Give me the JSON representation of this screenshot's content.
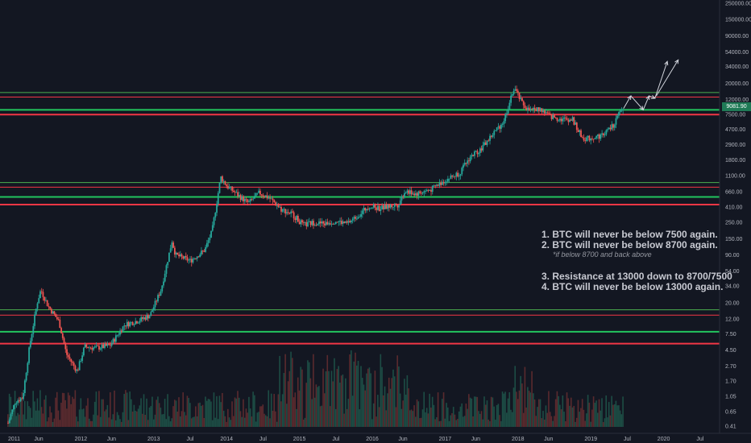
{
  "chart_data": {
    "type": "candlestick",
    "y_scale": "log",
    "y_ticks": [
      "250000.00",
      "150000.00",
      "90000.00",
      "54000.00",
      "34000.00",
      "20000.00",
      "12000.00",
      "7500.00",
      "4700.00",
      "2900.00",
      "1800.00",
      "1100.00",
      "660.00",
      "410.00",
      "250.00",
      "150.00",
      "90.00",
      "54.00",
      "34.00",
      "20.00",
      "12.00",
      "7.50",
      "4.50",
      "2.70",
      "1.70",
      "1.05",
      "0.65",
      "0.41"
    ],
    "x_ticks": [
      "2011",
      "Jun",
      "2012",
      "Jun",
      "2013",
      "Jul",
      "2014",
      "Jul",
      "2015",
      "Jul",
      "2016",
      "Jun",
      "2017",
      "Jun",
      "2018",
      "Jun",
      "2019",
      "Jul",
      "2020",
      "Jul"
    ],
    "current_price": "9081.90",
    "horizontal_lines": [
      {
        "price": 15000,
        "color": "#4caf50",
        "width": 1
      },
      {
        "price": 13000,
        "color": "#f23645",
        "width": 1
      },
      {
        "price": 8700,
        "color": "#22c55e",
        "width": 2
      },
      {
        "price": 7500,
        "color": "#f23645",
        "width": 2
      },
      {
        "price": 880,
        "color": "#4caf50",
        "width": 1
      },
      {
        "price": 760,
        "color": "#f23645",
        "width": 1
      },
      {
        "price": 560,
        "color": "#22c55e",
        "width": 2
      },
      {
        "price": 440,
        "color": "#f23645",
        "width": 2
      },
      {
        "price": 16,
        "color": "#4caf50",
        "width": 1
      },
      {
        "price": 13.5,
        "color": "#f23645",
        "width": 1
      },
      {
        "price": 8,
        "color": "#22c55e",
        "width": 2
      },
      {
        "price": 5.5,
        "color": "#f23645",
        "width": 2
      }
    ],
    "price_path": [
      [
        2011.0,
        0.45
      ],
      [
        2011.1,
        0.9
      ],
      [
        2011.2,
        1.0
      ],
      [
        2011.3,
        5.5
      ],
      [
        2011.4,
        20
      ],
      [
        2011.45,
        30
      ],
      [
        2011.55,
        18
      ],
      [
        2011.7,
        11
      ],
      [
        2011.8,
        4
      ],
      [
        2011.95,
        2.3
      ],
      [
        2012.05,
        5
      ],
      [
        2012.2,
        4.8
      ],
      [
        2012.4,
        5.2
      ],
      [
        2012.6,
        10
      ],
      [
        2012.8,
        11.5
      ],
      [
        2012.95,
        13.5
      ],
      [
        2013.1,
        30
      ],
      [
        2013.25,
        140
      ],
      [
        2013.3,
        90
      ],
      [
        2013.5,
        75
      ],
      [
        2013.7,
        105
      ],
      [
        2013.8,
        190
      ],
      [
        2013.92,
        1050
      ],
      [
        2014.0,
        800
      ],
      [
        2014.15,
        600
      ],
      [
        2014.3,
        460
      ],
      [
        2014.45,
        640
      ],
      [
        2014.6,
        530
      ],
      [
        2014.75,
        380
      ],
      [
        2014.9,
        330
      ],
      [
        2015.05,
        230
      ],
      [
        2015.2,
        250
      ],
      [
        2015.35,
        240
      ],
      [
        2015.5,
        265
      ],
      [
        2015.65,
        240
      ],
      [
        2015.8,
        310
      ],
      [
        2015.95,
        420
      ],
      [
        2016.1,
        390
      ],
      [
        2016.35,
        440
      ],
      [
        2016.45,
        680
      ],
      [
        2016.6,
        620
      ],
      [
        2016.8,
        700
      ],
      [
        2017.0,
        950
      ],
      [
        2017.2,
        1200
      ],
      [
        2017.35,
        2000
      ],
      [
        2017.5,
        2600
      ],
      [
        2017.65,
        4000
      ],
      [
        2017.8,
        6000
      ],
      [
        2017.95,
        17500
      ],
      [
        2018.05,
        11000
      ],
      [
        2018.15,
        8500
      ],
      [
        2018.3,
        9000
      ],
      [
        2018.45,
        7000
      ],
      [
        2018.6,
        6500
      ],
      [
        2018.75,
        6400
      ],
      [
        2018.88,
        3600
      ],
      [
        2018.95,
        3500
      ],
      [
        2019.15,
        3900
      ],
      [
        2019.3,
        5200
      ],
      [
        2019.4,
        8000
      ],
      [
        2019.45,
        9081.9
      ]
    ],
    "projection_arrows": [
      [
        [
          2019.45,
          9081.9
        ],
        [
          2019.55,
          13500
        ]
      ],
      [
        [
          2019.55,
          13500
        ],
        [
          2019.72,
          8700
        ]
      ],
      [
        [
          2019.72,
          8700
        ],
        [
          2019.8,
          13500
        ]
      ],
      [
        [
          2019.8,
          13500
        ],
        [
          2019.88,
          12500
        ]
      ],
      [
        [
          2019.88,
          12500
        ],
        [
          2020.05,
          40000
        ]
      ],
      [
        [
          2019.9,
          13500
        ],
        [
          2020.2,
          42000
        ]
      ]
    ],
    "annotations": [
      "1. BTC will never be below 7500 again.",
      "2. BTC will never be below 8700 again.",
      "*if below 8700 and back above",
      "3. Resistance at 13000 down to 8700/7500",
      "4. BTC will never be below 13000 again."
    ]
  }
}
